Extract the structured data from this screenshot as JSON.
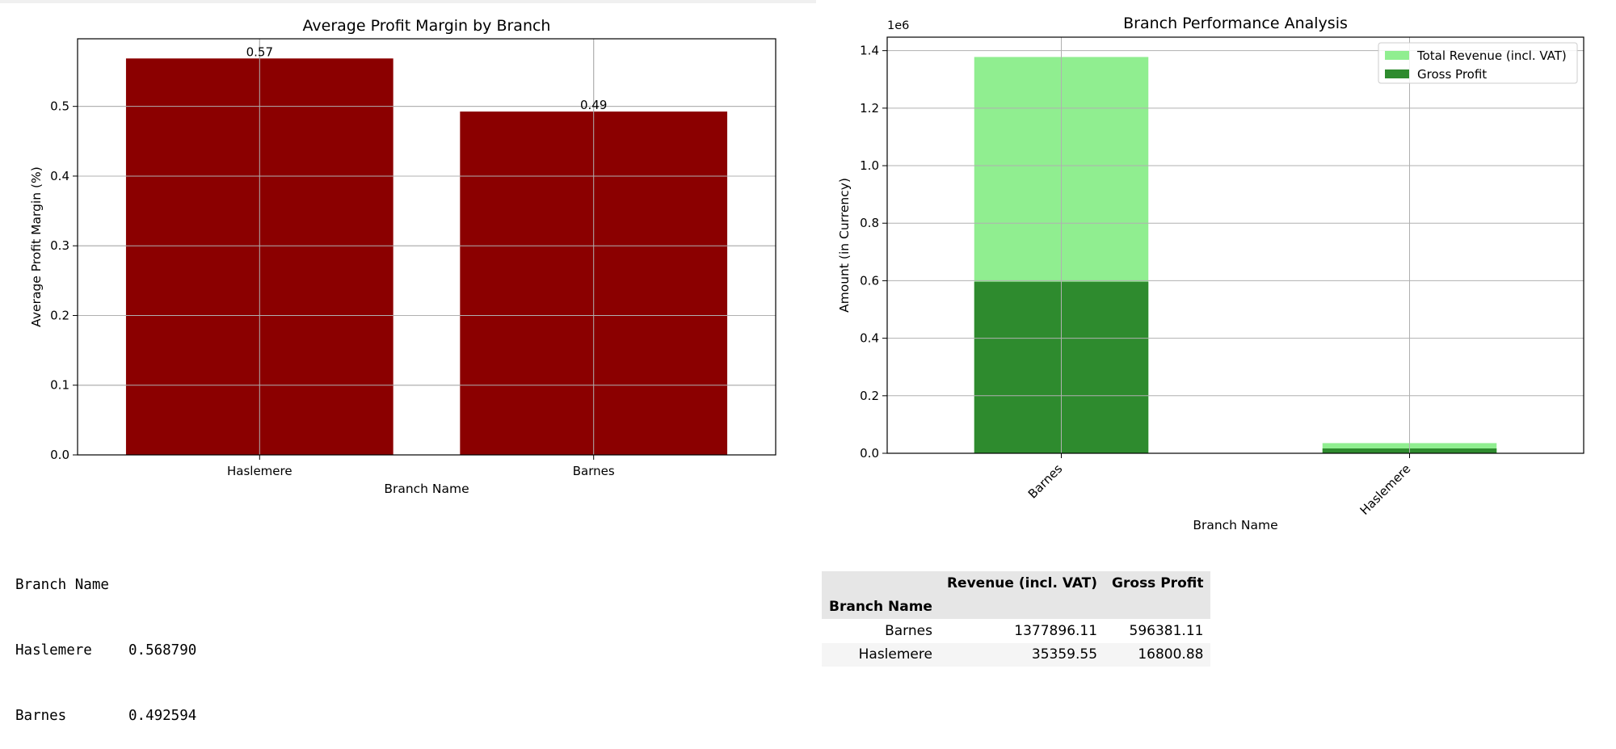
{
  "chart_data": [
    {
      "type": "bar",
      "title": "Average Profit Margin by Branch",
      "xlabel": "Branch Name",
      "ylabel": "Average Profit Margin (%)",
      "categories": [
        "Haslemere",
        "Barnes"
      ],
      "values": [
        0.56879,
        0.492594
      ],
      "data_labels": [
        "0.57",
        "0.49"
      ],
      "ylim": [
        0,
        0.597
      ],
      "yticks": [
        0.0,
        0.1,
        0.2,
        0.3,
        0.4,
        0.5
      ],
      "ytick_labels": [
        "0.0",
        "0.1",
        "0.2",
        "0.3",
        "0.4",
        "0.5"
      ],
      "grid": true,
      "colors": {
        "bar": "#8b0000"
      }
    },
    {
      "type": "bar",
      "title": "Branch Performance Analysis",
      "xlabel": "Branch Name",
      "ylabel": "Amount (in Currency)",
      "offset_label": "1e6",
      "categories": [
        "Barnes",
        "Haslemere"
      ],
      "series": [
        {
          "name": "Total Revenue (incl. VAT)",
          "values": [
            1377896.11,
            35359.55
          ],
          "color": "#90ee90"
        },
        {
          "name": "Gross Profit",
          "values": [
            596381.11,
            16800.88
          ],
          "color": "#2e8b2e"
        }
      ],
      "ylim": [
        0,
        1446791
      ],
      "yticks": [
        0,
        200000,
        400000,
        600000,
        800000,
        1000000,
        1200000,
        1400000
      ],
      "ytick_labels": [
        "0.0",
        "0.2",
        "0.4",
        "0.6",
        "0.8",
        "1.0",
        "1.2",
        "1.4"
      ],
      "grid": true,
      "legend_position": "top-right"
    }
  ],
  "console_output": {
    "header": "Branch Name",
    "rows": [
      {
        "name": "Haslemere",
        "value": "0.568790"
      },
      {
        "name": "Barnes",
        "value": "0.492594"
      }
    ]
  },
  "table": {
    "columns": [
      "Revenue (incl. VAT)",
      "Gross Profit"
    ],
    "index_name": "Branch Name",
    "rows": [
      {
        "branch": "Barnes",
        "revenue": "1377896.11",
        "profit": "596381.11"
      },
      {
        "branch": "Haslemere",
        "revenue": "35359.55",
        "profit": "16800.88"
      }
    ]
  }
}
